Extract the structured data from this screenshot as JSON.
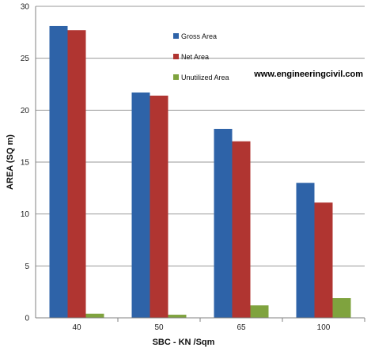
{
  "chart_data": {
    "type": "bar",
    "categories": [
      "40",
      "50",
      "65",
      "100"
    ],
    "series": [
      {
        "name": "Gross Area",
        "color": "#2E63A8",
        "values": [
          28.1,
          21.7,
          18.2,
          13.0
        ]
      },
      {
        "name": "Net Area",
        "color": "#B03531",
        "values": [
          27.7,
          21.4,
          17.0,
          11.1
        ]
      },
      {
        "name": "Unutilized Area",
        "color": "#7FA33E",
        "values": [
          0.4,
          0.3,
          1.2,
          1.9
        ]
      }
    ],
    "title": "",
    "xlabel": "SBC - KN /Sqm",
    "ylabel": "AREA (SQ m)",
    "ylim": [
      0,
      30
    ],
    "yticks": [
      0,
      5,
      10,
      15,
      20,
      25,
      30
    ],
    "grid": true,
    "legend_position": "top-center"
  },
  "watermark": "www.engineeringcivil.com"
}
